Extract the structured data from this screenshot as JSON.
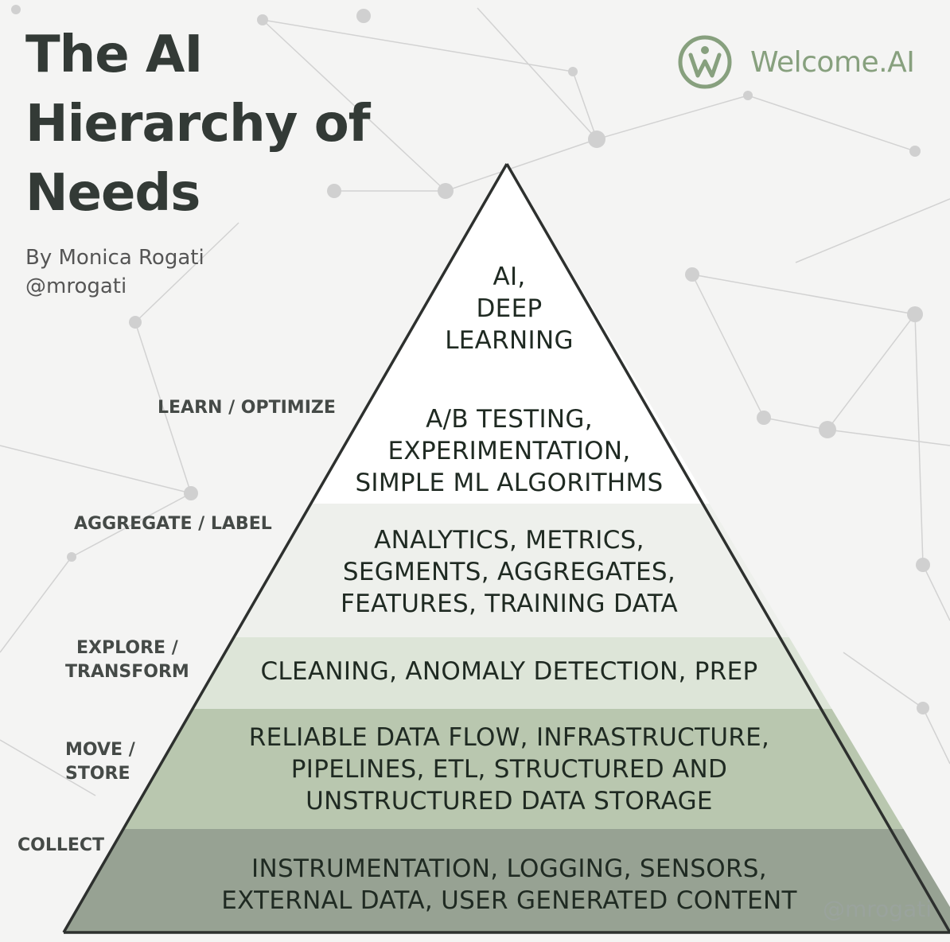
{
  "title": {
    "lines": [
      "The AI",
      "Hierarchy of",
      "Needs"
    ]
  },
  "byline": {
    "author": "By Monica Rogati",
    "handle": "@mrogati"
  },
  "logo": {
    "icon": "welcome-ai-w-circle-icon",
    "text": "Welcome.AI"
  },
  "tiers": [
    {
      "lines": [
        "AI,",
        "DEEP",
        "LEARNING"
      ],
      "color": "#ffffff"
    },
    {
      "lines": [
        "A/B TESTING,",
        "EXPERIMENTATION,",
        "SIMPLE ML ALGORITHMS"
      ],
      "color": "#ffffff"
    },
    {
      "lines": [
        "ANALYTICS, METRICS,",
        "SEGMENTS, AGGREGATES,",
        "FEATURES, TRAINING DATA"
      ],
      "color": "#eef0ec"
    },
    {
      "lines": [
        "CLEANING, ANOMALY DETECTION, PREP"
      ],
      "color": "#dde5d8"
    },
    {
      "lines": [
        "RELIABLE DATA FLOW, INFRASTRUCTURE,",
        "PIPELINES, ETL, STRUCTURED AND",
        "UNSTRUCTURED DATA STORAGE"
      ],
      "color": "#b9c7af"
    },
    {
      "lines": [
        "INSTRUMENTATION, LOGGING, SENSORS,",
        "EXTERNAL DATA, USER GENERATED CONTENT"
      ],
      "color": "#97a293"
    }
  ],
  "side_labels": [
    {
      "lines": [
        "LEARN / OPTIMIZE"
      ]
    },
    {
      "lines": [
        "AGGREGATE / LABEL"
      ]
    },
    {
      "lines": [
        "EXPLORE /",
        "TRANSFORM"
      ]
    },
    {
      "lines": [
        "MOVE /",
        "STORE"
      ]
    },
    {
      "lines": [
        "COLLECT"
      ]
    }
  ],
  "watermark": "@mrogati"
}
